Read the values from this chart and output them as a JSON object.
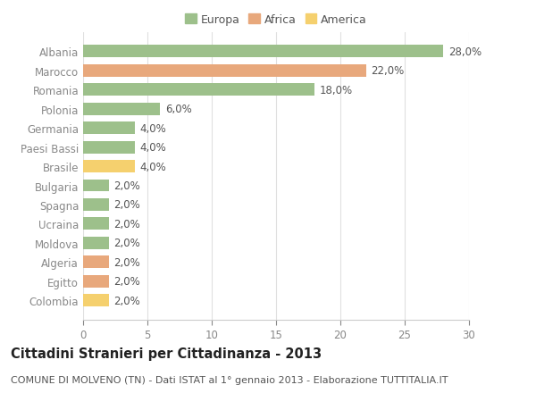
{
  "categories": [
    "Albania",
    "Marocco",
    "Romania",
    "Polonia",
    "Germania",
    "Paesi Bassi",
    "Brasile",
    "Bulgaria",
    "Spagna",
    "Ucraina",
    "Moldova",
    "Algeria",
    "Egitto",
    "Colombia"
  ],
  "values": [
    28.0,
    22.0,
    18.0,
    6.0,
    4.0,
    4.0,
    4.0,
    2.0,
    2.0,
    2.0,
    2.0,
    2.0,
    2.0,
    2.0
  ],
  "continent": [
    "Europa",
    "Africa",
    "Europa",
    "Europa",
    "Europa",
    "Europa",
    "America",
    "Europa",
    "Europa",
    "Europa",
    "Europa",
    "Africa",
    "Africa",
    "America"
  ],
  "colors": {
    "Europa": "#9dc08b",
    "Africa": "#e8a87c",
    "America": "#f5d06e"
  },
  "legend_labels": [
    "Europa",
    "Africa",
    "America"
  ],
  "legend_colors": [
    "#9dc08b",
    "#e8a87c",
    "#f5d06e"
  ],
  "title": "Cittadini Stranieri per Cittadinanza - 2013",
  "subtitle": "COMUNE DI MOLVENO (TN) - Dati ISTAT al 1° gennaio 2013 - Elaborazione TUTTITALIA.IT",
  "xlim": [
    0,
    30
  ],
  "xticks": [
    0,
    5,
    10,
    15,
    20,
    25,
    30
  ],
  "background_color": "#ffffff",
  "grid_color": "#e0e0e0",
  "bar_height": 0.65,
  "label_fontsize": 8.5,
  "tick_fontsize": 8.5,
  "title_fontsize": 10.5,
  "subtitle_fontsize": 8.0
}
